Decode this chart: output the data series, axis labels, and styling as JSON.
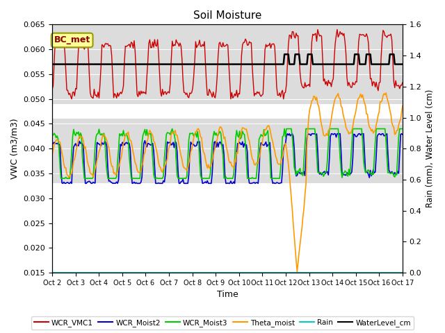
{
  "title": "Soil Moisture",
  "xlabel": "Time",
  "ylabel_left": "VWC (m3/m3)",
  "ylabel_right": "Rain (mm), Water Level (cm)",
  "annotation_text": "BC_met",
  "ylim_left": [
    0.015,
    0.065
  ],
  "ylim_right": [
    0.0,
    1.6
  ],
  "yticks_left": [
    0.015,
    0.02,
    0.025,
    0.03,
    0.035,
    0.04,
    0.045,
    0.05,
    0.055,
    0.06,
    0.065
  ],
  "yticks_right": [
    0.0,
    0.2,
    0.4,
    0.6,
    0.8,
    1.0,
    1.2,
    1.4,
    1.6
  ],
  "x_labels": [
    "Oct 2",
    "Oct 3",
    "Oct 4",
    "Oct 5",
    "Oct 6",
    "Oct 7",
    "Oct 8",
    "Oct 9",
    "Oct 10",
    "Oct 11",
    "Oct 12",
    "Oct 13",
    "Oct 14",
    "Oct 15",
    "Oct 16",
    "Oct 17"
  ],
  "bg_color": "#dcdcdc",
  "fig_color": "#ffffff",
  "band_upper": [
    0.049,
    0.065
  ],
  "band_lower": [
    0.033,
    0.046
  ],
  "colors": {
    "WCR_VMC1": "#cc0000",
    "WCR_Moist2": "#0000cc",
    "WCR_Moist3": "#00cc00",
    "Theta_moist": "#ff9900",
    "Rain": "#00cccc",
    "WaterLevel_cm": "#000000"
  }
}
